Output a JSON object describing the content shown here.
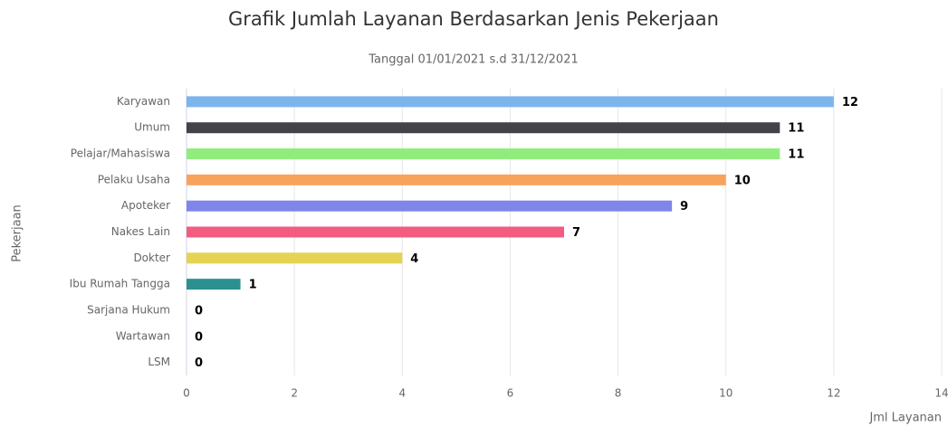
{
  "chart_data": {
    "type": "hbar",
    "title": "Grafik Jumlah Layanan Berdasarkan Jenis Pekerjaan",
    "subtitle": "Tanggal 01/01/2021 s.d 31/12/2021",
    "y_axis_label": "Pekerjaan",
    "x_axis_label": "Jml Layanan",
    "categories": [
      "Karyawan",
      "Umum",
      "Pelajar/Mahasiswa",
      "Pelaku Usaha",
      "Apoteker",
      "Nakes Lain",
      "Dokter",
      "Ibu Rumah Tangga",
      "Sarjana Hukum",
      "Wartawan",
      "LSM"
    ],
    "values": [
      12,
      11,
      11,
      10,
      9,
      7,
      4,
      1,
      0,
      0,
      0
    ],
    "colors": [
      "#7cb5ec",
      "#434348",
      "#90ed7d",
      "#f7a35c",
      "#8085e9",
      "#f15c80",
      "#e4d354",
      "#2b908f",
      "#f45b5b",
      "#91e8e1",
      "#7cb5ec"
    ],
    "xlim": [
      0,
      14
    ],
    "xticks": [
      0,
      2,
      4,
      6,
      8,
      10,
      12,
      14
    ],
    "grid": true
  }
}
